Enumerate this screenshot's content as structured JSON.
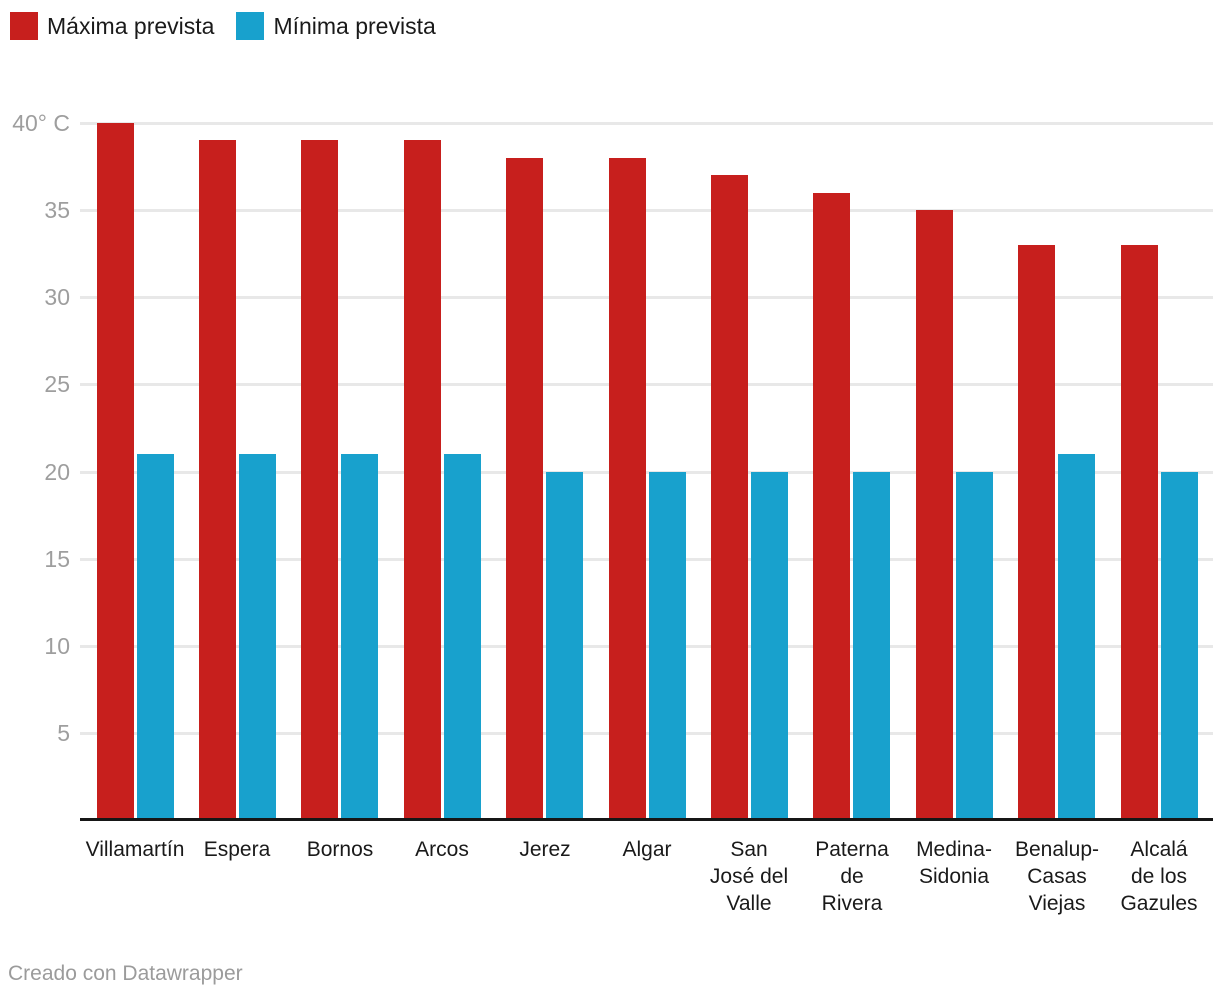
{
  "chart_data": {
    "type": "bar",
    "title": "",
    "xlabel": "",
    "ylabel": "",
    "ylim": [
      0,
      40
    ],
    "grid": "horizontal-light",
    "legend_position": "top-left",
    "categories": [
      "Villamartín",
      "Espera",
      "Bornos",
      "Arcos",
      "Jerez",
      "Algar",
      "San José del Valle",
      "Paterna de Rivera",
      "Medina-Sidonia",
      "Benalup-Casas Viejas",
      "Alcalá de los Gazules"
    ],
    "category_label_lines": [
      [
        "Villamartín"
      ],
      [
        "Espera"
      ],
      [
        "Bornos"
      ],
      [
        "Arcos"
      ],
      [
        "Jerez"
      ],
      [
        "Algar"
      ],
      [
        "San",
        "José del",
        "Valle"
      ],
      [
        "Paterna",
        "de",
        "Rivera"
      ],
      [
        "Medina-",
        "Sidonia"
      ],
      [
        "Benalup-",
        "Casas",
        "Viejas"
      ],
      [
        "Alcalá",
        "de los",
        "Gazules"
      ]
    ],
    "series": [
      {
        "name": "Máxima prevista",
        "color": "#c71f1d",
        "values": [
          40,
          39,
          39,
          39,
          38,
          38,
          37,
          36,
          35,
          33,
          33
        ]
      },
      {
        "name": "Mínima prevista",
        "color": "#18a1cd",
        "values": [
          21,
          21,
          21,
          21,
          20,
          20,
          20,
          20,
          20,
          21,
          20
        ]
      }
    ],
    "yticks": [
      {
        "value": 40,
        "label": "40° C"
      },
      {
        "value": 35,
        "label": "35"
      },
      {
        "value": 30,
        "label": "30"
      },
      {
        "value": 25,
        "label": "25"
      },
      {
        "value": 20,
        "label": "20"
      },
      {
        "value": 15,
        "label": "15"
      },
      {
        "value": 10,
        "label": "10"
      },
      {
        "value": 5,
        "label": "5"
      }
    ]
  },
  "footer": {
    "credit": "Creado con Datawrapper"
  },
  "colors": {
    "background": "#ffffff",
    "grid": "#e8e8e8",
    "axis_line": "#161616",
    "tick_label": "#9e9e9e",
    "category_label": "#1a1a1a",
    "legend_label": "#1a1a1a",
    "footer_text": "#9b9b9b"
  }
}
